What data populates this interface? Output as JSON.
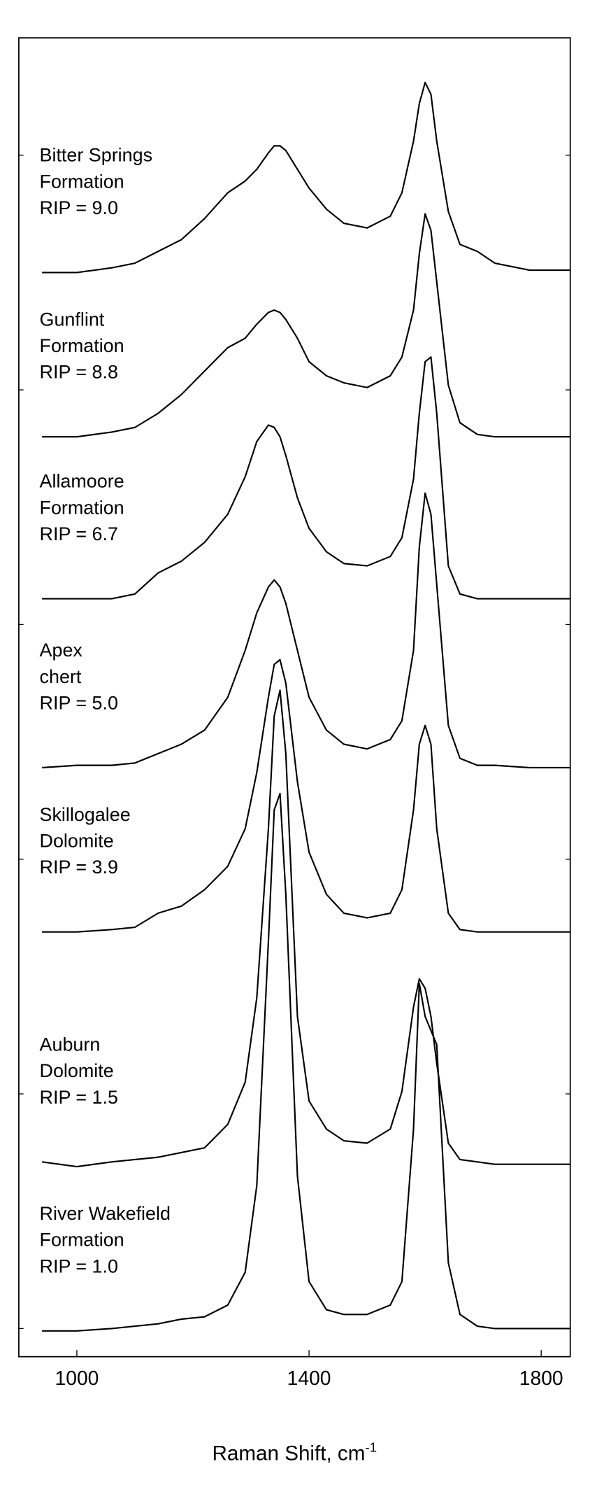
{
  "chart_data": {
    "type": "line",
    "xlabel": "Raman Shift, cm",
    "xlabel_sup": "-1",
    "xlim": [
      900,
      1850
    ],
    "xticks": [
      1000,
      1400,
      1800
    ],
    "ylim": [
      -0.12,
      5.5
    ],
    "yticks": [
      0,
      1,
      2,
      3,
      4,
      5
    ],
    "color": "#000000",
    "x": [
      940,
      1000,
      1060,
      1100,
      1140,
      1180,
      1220,
      1260,
      1290,
      1310,
      1330,
      1340,
      1350,
      1360,
      1380,
      1400,
      1430,
      1460,
      1500,
      1540,
      1560,
      1580,
      1590,
      1600,
      1610,
      1620,
      1640,
      1660,
      1690,
      1720,
      1780,
      1850
    ],
    "series": [
      {
        "label": [
          "Bitter Springs",
          "Formation",
          "RIP = 9.0"
        ],
        "values": [
          4.5,
          4.5,
          4.52,
          4.54,
          4.59,
          4.64,
          4.73,
          4.84,
          4.89,
          4.94,
          5.01,
          5.04,
          5.04,
          5.02,
          4.94,
          4.86,
          4.77,
          4.71,
          4.69,
          4.74,
          4.84,
          5.06,
          5.22,
          5.31,
          5.26,
          5.06,
          4.76,
          4.62,
          4.59,
          4.54,
          4.51,
          4.51
        ]
      },
      {
        "label": [
          "Gunflint",
          "Formation",
          "RIP = 8.8"
        ],
        "values": [
          3.8,
          3.8,
          3.82,
          3.84,
          3.9,
          3.98,
          4.08,
          4.18,
          4.22,
          4.28,
          4.33,
          4.34,
          4.33,
          4.3,
          4.22,
          4.12,
          4.06,
          4.03,
          4.01,
          4.06,
          4.14,
          4.34,
          4.58,
          4.75,
          4.68,
          4.46,
          4.02,
          3.86,
          3.81,
          3.8,
          3.8,
          3.8
        ]
      },
      {
        "label": [
          "Allamoore",
          "Formation",
          "RIP = 6.7"
        ],
        "values": [
          3.11,
          3.11,
          3.11,
          3.13,
          3.22,
          3.27,
          3.35,
          3.47,
          3.63,
          3.78,
          3.85,
          3.84,
          3.8,
          3.72,
          3.54,
          3.41,
          3.31,
          3.26,
          3.25,
          3.29,
          3.37,
          3.62,
          3.9,
          4.12,
          4.14,
          3.9,
          3.25,
          3.13,
          3.11,
          3.11,
          3.11,
          3.11
        ]
      },
      {
        "label": [
          "Apex",
          "chert",
          "RIP = 5.0"
        ],
        "values": [
          2.39,
          2.4,
          2.4,
          2.41,
          2.45,
          2.49,
          2.55,
          2.69,
          2.89,
          3.05,
          3.16,
          3.19,
          3.16,
          3.09,
          2.89,
          2.69,
          2.55,
          2.49,
          2.47,
          2.51,
          2.59,
          2.89,
          3.33,
          3.56,
          3.47,
          3.17,
          2.57,
          2.43,
          2.4,
          2.4,
          2.39,
          2.39
        ]
      },
      {
        "label": [
          "Skillogalee",
          "Dolomite",
          "RIP = 3.9"
        ],
        "values": [
          1.69,
          1.69,
          1.7,
          1.71,
          1.77,
          1.8,
          1.87,
          1.97,
          2.13,
          2.37,
          2.69,
          2.83,
          2.85,
          2.75,
          2.33,
          2.03,
          1.85,
          1.77,
          1.75,
          1.77,
          1.87,
          2.21,
          2.49,
          2.57,
          2.49,
          2.13,
          1.77,
          1.7,
          1.69,
          1.69,
          1.69,
          1.69
        ]
      },
      {
        "label": [
          "Auburn",
          "Dolomite",
          "RIP = 1.5"
        ],
        "values": [
          0.71,
          0.69,
          0.71,
          0.72,
          0.73,
          0.75,
          0.77,
          0.87,
          1.05,
          1.41,
          2.13,
          2.61,
          2.72,
          2.45,
          1.33,
          0.97,
          0.85,
          0.8,
          0.79,
          0.85,
          1.01,
          1.37,
          1.49,
          1.45,
          1.33,
          1.13,
          0.79,
          0.72,
          0.71,
          0.7,
          0.7,
          0.7
        ]
      },
      {
        "label": [
          "River Wakefield",
          "Formation",
          "RIP = 1.0"
        ],
        "values": [
          -0.01,
          -0.01,
          0.0,
          0.01,
          0.02,
          0.04,
          0.05,
          0.1,
          0.24,
          0.61,
          1.65,
          2.21,
          2.28,
          1.85,
          0.65,
          0.2,
          0.08,
          0.06,
          0.06,
          0.1,
          0.2,
          0.85,
          1.47,
          1.33,
          1.27,
          1.21,
          0.28,
          0.06,
          0.01,
          0.0,
          0.0,
          0.0
        ]
      }
    ]
  }
}
